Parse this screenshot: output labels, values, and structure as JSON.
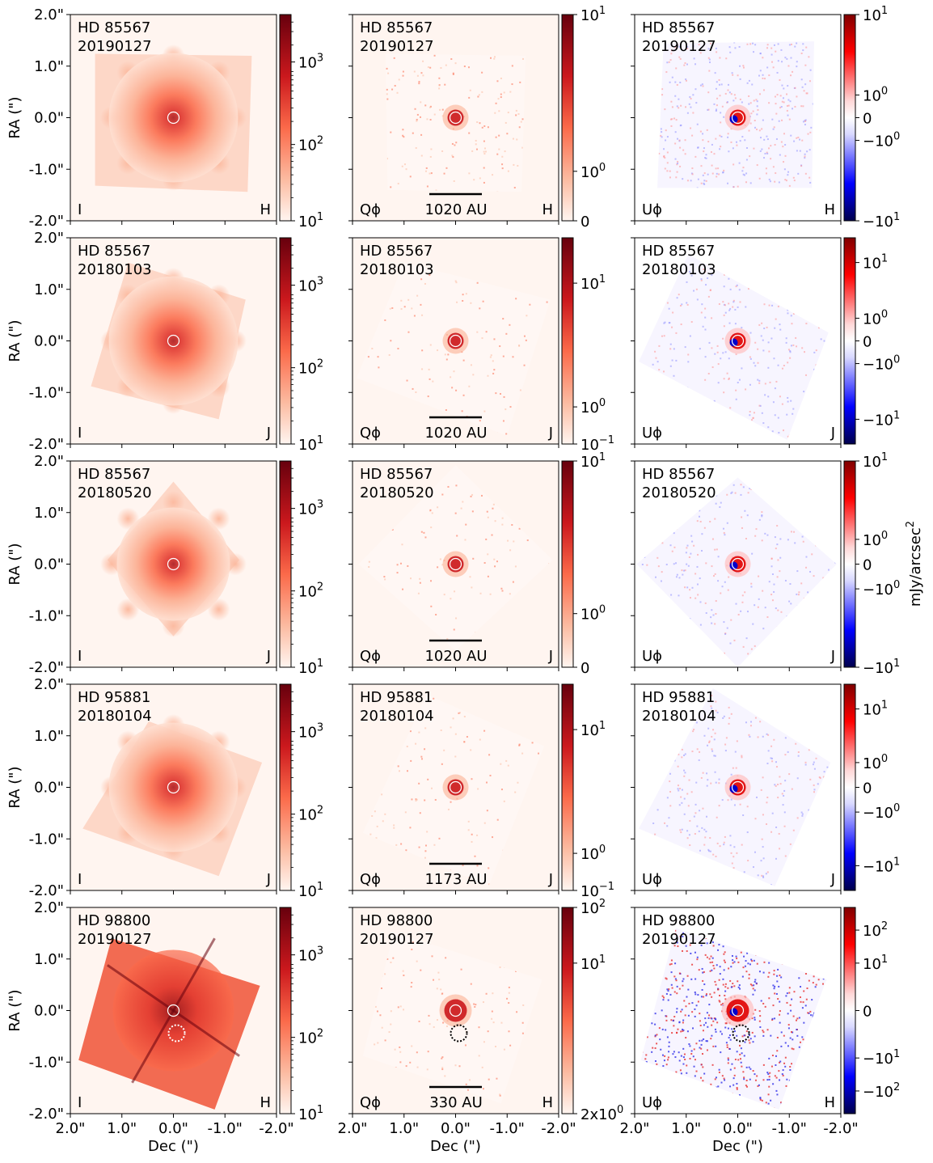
{
  "figure": {
    "ylabel": "RA (\")",
    "xlabel": "Dec (\")",
    "cbar_label_main": "mJy/arcsec",
    "cbar_label_sup": "2",
    "axis_ticks": [
      "2.0\"",
      "1.0\"",
      "0.0\"",
      "-1.0\"",
      "-2.0\""
    ],
    "colors": {
      "red_dark": "#67000d",
      "red_mid": "#ef3b2c",
      "red_light": "#fff5f0",
      "blue_dark": "#00004c",
      "blue": "#0000ff",
      "white": "#ffffff"
    }
  },
  "rows": [
    {
      "target": "HD 85567",
      "date": "20190127",
      "band": "H",
      "panels": [
        {
          "stokes": "I",
          "scalebar": "",
          "cbar_ticks": [
            {
              "t": "10^3",
              "v": 0.77
            },
            {
              "t": "10^2",
              "v": 0.37
            },
            {
              "t": "10^1",
              "v": 0.0
            }
          ]
        },
        {
          "stokes": "Qϕ",
          "scalebar": "1020 AU",
          "cbar_ticks": [
            {
              "t": "10^1",
              "v": 1.0
            },
            {
              "t": "10^0",
              "v": 0.24
            },
            {
              "t": "0",
              "v": 0.0
            }
          ]
        },
        {
          "stokes": "Uϕ",
          "scalebar": "",
          "cbar_ticks": [
            {
              "t": "10^1",
              "v": 1.0
            },
            {
              "t": "10^0",
              "v": 0.61
            },
            {
              "t": "0",
              "v": 0.5
            },
            {
              "t": "−10^0",
              "v": 0.39
            },
            {
              "t": "−10^1",
              "v": 0.0
            }
          ]
        }
      ]
    },
    {
      "target": "HD 85567",
      "date": "20180103",
      "band": "J",
      "panels": [
        {
          "stokes": "I",
          "scalebar": "",
          "cbar_ticks": [
            {
              "t": "10^3",
              "v": 0.77
            },
            {
              "t": "10^2",
              "v": 0.37
            },
            {
              "t": "10^1",
              "v": 0.0
            }
          ]
        },
        {
          "stokes": "Qϕ",
          "scalebar": "1020 AU",
          "cbar_ticks": [
            {
              "t": "10^1",
              "v": 0.78
            },
            {
              "t": "10^0",
              "v": 0.18
            },
            {
              "t": "10^−1",
              "v": 0.0
            }
          ]
        },
        {
          "stokes": "Uϕ",
          "scalebar": "",
          "cbar_ticks": [
            {
              "t": "10^1",
              "v": 0.88
            },
            {
              "t": "10^0",
              "v": 0.61
            },
            {
              "t": "0",
              "v": 0.5
            },
            {
              "t": "−10^0",
              "v": 0.39
            },
            {
              "t": "−10^1",
              "v": 0.12
            }
          ]
        }
      ]
    },
    {
      "target": "HD 85567",
      "date": "20180520",
      "band": "J",
      "panels": [
        {
          "stokes": "I",
          "scalebar": "",
          "cbar_ticks": [
            {
              "t": "10^3",
              "v": 0.77
            },
            {
              "t": "10^2",
              "v": 0.37
            },
            {
              "t": "10^1",
              "v": 0.0
            }
          ]
        },
        {
          "stokes": "Qϕ",
          "scalebar": "1020 AU",
          "cbar_ticks": [
            {
              "t": "10^1",
              "v": 1.0
            },
            {
              "t": "10^0",
              "v": 0.26
            },
            {
              "t": "0",
              "v": 0.0
            }
          ]
        },
        {
          "stokes": "Uϕ",
          "scalebar": "",
          "cbar_ticks": [
            {
              "t": "10^1",
              "v": 1.0
            },
            {
              "t": "10^0",
              "v": 0.62
            },
            {
              "t": "0",
              "v": 0.5
            },
            {
              "t": "−10^0",
              "v": 0.38
            },
            {
              "t": "−10^1",
              "v": 0.0
            }
          ]
        }
      ]
    },
    {
      "target": "HD 95881",
      "date": "20180104",
      "band": "J",
      "panels": [
        {
          "stokes": "I",
          "scalebar": "",
          "cbar_ticks": [
            {
              "t": "10^3",
              "v": 0.77
            },
            {
              "t": "10^2",
              "v": 0.37
            },
            {
              "t": "10^1",
              "v": 0.0
            }
          ]
        },
        {
          "stokes": "Qϕ",
          "scalebar": "1173 AU",
          "cbar_ticks": [
            {
              "t": "10^1",
              "v": 0.78
            },
            {
              "t": "10^0",
              "v": 0.18
            },
            {
              "t": "10^−1",
              "v": 0.0
            }
          ]
        },
        {
          "stokes": "Uϕ",
          "scalebar": "",
          "cbar_ticks": [
            {
              "t": "10^1",
              "v": 0.88
            },
            {
              "t": "10^0",
              "v": 0.62
            },
            {
              "t": "0",
              "v": 0.5
            },
            {
              "t": "−10^0",
              "v": 0.38
            },
            {
              "t": "−10^1",
              "v": 0.12
            }
          ]
        }
      ]
    },
    {
      "target": "HD 98800",
      "date": "20190127",
      "band": "H",
      "panels": [
        {
          "stokes": "I",
          "scalebar": "",
          "cbar_ticks": [
            {
              "t": "10^3",
              "v": 0.77
            },
            {
              "t": "10^2",
              "v": 0.37
            },
            {
              "t": "10^1",
              "v": 0.0
            }
          ]
        },
        {
          "stokes": "Qϕ",
          "scalebar": "330 AU",
          "cbar_ticks": [
            {
              "t": "10^2",
              "v": 1.0
            },
            {
              "t": "10^1",
              "v": 0.73
            },
            {
              "t": "2x10^0",
              "v": 0.0
            }
          ]
        },
        {
          "stokes": "Uϕ",
          "scalebar": "",
          "cbar_ticks": [
            {
              "t": "10^2",
              "v": 0.89
            },
            {
              "t": "10^1",
              "v": 0.73
            },
            {
              "t": "0",
              "v": 0.5
            },
            {
              "t": "−10^1",
              "v": 0.27
            },
            {
              "t": "−10^2",
              "v": 0.11
            }
          ]
        }
      ]
    }
  ],
  "chart_data": {
    "type": "heatmap",
    "title": "",
    "xlabel": "Dec (\")",
    "ylabel": "RA (\")",
    "xlim": [
      2.0,
      -2.0
    ],
    "ylim": [
      -2.0,
      2.0
    ],
    "xticks": [
      2.0,
      1.0,
      0.0,
      -1.0,
      -2.0
    ],
    "yticks": [
      2.0,
      1.0,
      0.0,
      -1.0,
      -2.0
    ],
    "colorbar_label": "mJy/arcsec^2",
    "columns": [
      "I",
      "Qϕ",
      "Uϕ"
    ],
    "colormaps": {
      "I": "Reds (log)",
      "Qϕ": "Reds (symlog)",
      "Uϕ": "seismic (symlog)"
    },
    "colorbar_ranges": {
      "I": [
        10,
        5000
      ],
      "Qϕ": {
        "HD 85567 20190127": [
          0,
          10
        ],
        "HD 85567 20180103": [
          0.1,
          20
        ],
        "HD 85567 20180520": [
          0,
          10
        ],
        "HD 95881 20180104": [
          0.1,
          20
        ],
        "HD 98800 20190127": [
          2,
          100
        ]
      },
      "Uϕ": {
        "HD 85567 20190127": [
          -10,
          10
        ],
        "HD 85567 20180103": [
          -20,
          20
        ],
        "HD 85567 20180520": [
          -10,
          10
        ],
        "HD 95881 20180104": [
          -20,
          20
        ],
        "HD 98800 20190127": [
          -300,
          300
        ]
      }
    },
    "scalebars_au": {
      "HD 85567": 1020,
      "HD 95881": 1173,
      "HD 98800": 330
    }
  }
}
